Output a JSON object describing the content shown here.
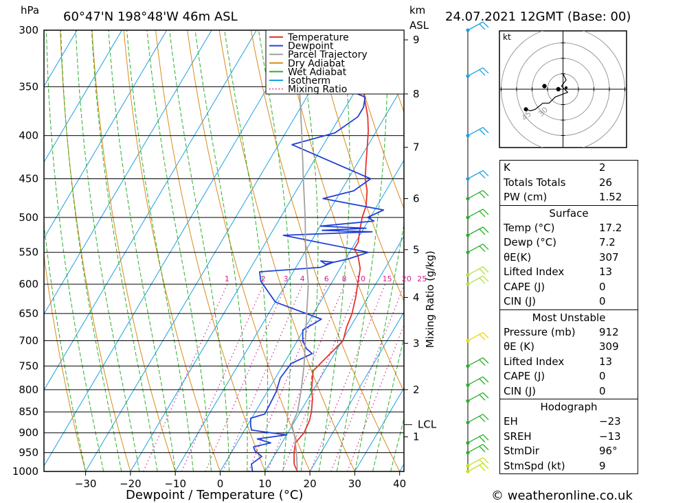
{
  "header": {
    "location": "60°47'N  198°48'W  46m  ASL",
    "datetime": "24.07.2021  12GMT  (Base: 00)",
    "left_unit": "hPa",
    "right_unit_top": "km",
    "right_unit_bottom": "ASL"
  },
  "footer": {
    "copyright": "© weatheronline.co.uk"
  },
  "legend": {
    "items": [
      {
        "label": "Temperature",
        "color": "#e8302a",
        "style": "solid"
      },
      {
        "label": "Dewpoint",
        "color": "#2040d8",
        "style": "solid"
      },
      {
        "label": "Parcel Trajectory",
        "color": "#a0a0a0",
        "style": "solid"
      },
      {
        "label": "Dry Adiabat",
        "color": "#d88a1a",
        "style": "solid"
      },
      {
        "label": "Wet Adiabat",
        "color": "#28b028",
        "style": "solid"
      },
      {
        "label": "Isotherm",
        "color": "#1aa0e0",
        "style": "solid"
      },
      {
        "label": "Mixing Ratio",
        "color": "#d02090",
        "style": "dotted"
      }
    ]
  },
  "chart_data": {
    "type": "line",
    "xlabel": "Dewpoint / Temperature (°C)",
    "ylabel_left": "hPa",
    "ylabel_right": "Mixing Ratio (g/kg)",
    "x_ticks": [
      -30,
      -20,
      -10,
      0,
      10,
      20,
      30,
      40
    ],
    "xlim": [
      -40,
      40
    ],
    "ylim": [
      1000,
      300
    ],
    "pressure_ticks": [
      300,
      350,
      400,
      450,
      500,
      550,
      600,
      650,
      700,
      750,
      800,
      850,
      900,
      950,
      1000
    ],
    "km_ticks": [
      {
        "label": "1",
        "p": 910
      },
      {
        "label": "2",
        "p": 800
      },
      {
        "label": "3",
        "p": 705
      },
      {
        "label": "4",
        "p": 622
      },
      {
        "label": "5",
        "p": 546
      },
      {
        "label": "6",
        "p": 475
      },
      {
        "label": "7",
        "p": 413
      },
      {
        "label": "8",
        "p": 357
      },
      {
        "label": "9",
        "p": 308
      }
    ],
    "lcl": {
      "label": "LCL",
      "p": 880
    },
    "mixing_ratio_labels": [
      "1",
      "2",
      "3",
      "4",
      "6",
      "8",
      "10",
      "15",
      "20",
      "25"
    ],
    "mixing_ratio_values": [
      1,
      2,
      3,
      4,
      6,
      8,
      10,
      15,
      20,
      25
    ],
    "series": [
      {
        "name": "Temperature",
        "points": [
          [
            17.2,
            1000
          ],
          [
            15.5,
            980
          ],
          [
            14,
            950
          ],
          [
            13,
            925
          ],
          [
            13.6,
            900
          ],
          [
            13.2,
            870
          ],
          [
            12.5,
            850
          ],
          [
            11,
            820
          ],
          [
            9.6,
            800
          ],
          [
            7.5,
            760
          ],
          [
            8.8,
            730
          ],
          [
            10.2,
            700
          ],
          [
            9.2,
            675
          ],
          [
            8.6,
            650
          ],
          [
            7.2,
            620
          ],
          [
            6,
            600
          ],
          [
            4.5,
            575
          ],
          [
            2.3,
            555
          ],
          [
            0.6,
            545
          ],
          [
            0.6,
            535
          ],
          [
            -0.5,
            520
          ],
          [
            -1.8,
            500
          ],
          [
            -2.4,
            485
          ],
          [
            -4.2,
            465
          ],
          [
            -6.2,
            450
          ],
          [
            -8.2,
            430
          ],
          [
            -10.2,
            410
          ],
          [
            -11.8,
            395
          ],
          [
            -13.8,
            380
          ],
          [
            -16.3,
            365
          ],
          [
            -18.8,
            350
          ],
          [
            -21.2,
            336
          ],
          [
            -23.3,
            325
          ],
          [
            -25.2,
            315
          ],
          [
            -27.3,
            303
          ]
        ]
      },
      {
        "name": "Dewpoint",
        "points": [
          [
            7.2,
            1000
          ],
          [
            6,
            980
          ],
          [
            7.3,
            960
          ],
          [
            5,
            945
          ],
          [
            4.2,
            935
          ],
          [
            7.5,
            925
          ],
          [
            4,
            915
          ],
          [
            10,
            905
          ],
          [
            4,
            897
          ],
          [
            1.5,
            893
          ],
          [
            0.6,
            880
          ],
          [
            -0.2,
            865
          ],
          [
            2.4,
            855
          ],
          [
            2.2,
            830
          ],
          [
            2,
            805
          ],
          [
            1.1,
            775
          ],
          [
            1.6,
            745
          ],
          [
            5,
            725
          ],
          [
            3,
            715
          ],
          [
            1.2,
            700
          ],
          [
            -0.2,
            680
          ],
          [
            2.5,
            660
          ],
          [
            -10,
            630
          ],
          [
            -16,
            595
          ],
          [
            -17.5,
            580
          ],
          [
            -4.5,
            573
          ],
          [
            -2.3,
            565
          ],
          [
            -5.3,
            563
          ],
          [
            -3.8,
            568
          ],
          [
            0.6,
            560
          ],
          [
            4.2,
            550
          ],
          [
            -17,
            525
          ],
          [
            2.3,
            520
          ],
          [
            -9,
            518
          ],
          [
            0.5,
            515
          ],
          [
            -10,
            512
          ],
          [
            1.3,
            505
          ],
          [
            -0.6,
            500
          ],
          [
            2,
            490
          ],
          [
            -13,
            475
          ],
          [
            -7.2,
            465
          ],
          [
            -5,
            450
          ],
          [
            -27,
            410
          ],
          [
            -19,
            397
          ],
          [
            -16,
            380
          ],
          [
            -16,
            370
          ],
          [
            -17,
            360
          ],
          [
            -24,
            350
          ],
          [
            -24,
            340
          ],
          [
            -24.5,
            331
          ],
          [
            -23,
            323
          ],
          [
            -21,
            318
          ],
          [
            -19,
            314
          ],
          [
            -18.6,
            306
          ],
          [
            -20,
            303
          ],
          [
            -22.5,
            300
          ]
        ]
      },
      {
        "name": "Parcel Trajectory",
        "points": [
          [
            17.2,
            1000
          ],
          [
            14.8,
            955
          ],
          [
            12.2,
            912
          ],
          [
            9.8,
            880
          ],
          [
            9.4,
            850
          ],
          [
            7.3,
            800
          ],
          [
            4.8,
            750
          ],
          [
            1.8,
            700
          ],
          [
            -1.5,
            650
          ],
          [
            -5,
            600
          ],
          [
            -9.8,
            550
          ],
          [
            -14.5,
            500
          ],
          [
            -20,
            450
          ],
          [
            -26,
            400
          ],
          [
            -33,
            350
          ],
          [
            -39,
            310
          ]
        ]
      }
    ],
    "winds_profile": [
      {
        "p": 1000,
        "color": "#c8e020"
      },
      {
        "p": 985,
        "color": "#c8e020"
      },
      {
        "p": 950,
        "color": "#28b028"
      },
      {
        "p": 925,
        "color": "#28b028"
      },
      {
        "p": 875,
        "color": "#28b028"
      },
      {
        "p": 825,
        "color": "#28b028"
      },
      {
        "p": 790,
        "color": "#28b028"
      },
      {
        "p": 750,
        "color": "#28b028"
      },
      {
        "p": 700,
        "color": "#f0d800"
      },
      {
        "p": 600,
        "color": "#b0e040"
      },
      {
        "p": 585,
        "color": "#b0e040"
      },
      {
        "p": 550,
        "color": "#28b028"
      },
      {
        "p": 525,
        "color": "#28b028"
      },
      {
        "p": 500,
        "color": "#28b028"
      },
      {
        "p": 475,
        "color": "#28b028"
      },
      {
        "p": 450,
        "color": "#1aa0e0"
      },
      {
        "p": 400,
        "color": "#1aa0e0"
      },
      {
        "p": 340,
        "color": "#1aa0e0"
      },
      {
        "p": 300,
        "color": "#1aa0e0"
      }
    ],
    "hodograph": {
      "unit_label": "kt",
      "ring_labels": [
        "45",
        "30"
      ],
      "path": [
        [
          0,
          -10
        ],
        [
          2,
          -6
        ],
        [
          -1,
          -2
        ],
        [
          3,
          2
        ],
        [
          -5,
          5
        ],
        [
          -9,
          9
        ],
        [
          -13,
          9
        ],
        [
          -18,
          13
        ],
        [
          -21,
          14
        ],
        [
          -24,
          13
        ]
      ],
      "storm_motion": [
        [
          -3,
          0
        ],
        [
          -12,
          -2
        ]
      ]
    }
  },
  "indices": {
    "top": [
      {
        "key": "K",
        "value": "2"
      },
      {
        "key": "Totals Totals",
        "value": "26"
      },
      {
        "key": "PW (cm)",
        "value": "1.52"
      }
    ],
    "surface": {
      "title": "Surface",
      "rows": [
        {
          "key": "Temp (°C)",
          "value": "17.2"
        },
        {
          "key": "Dewp (°C)",
          "value": "7.2"
        },
        {
          "key": "θE(K)",
          "value": "307"
        },
        {
          "key": "Lifted Index",
          "value": "13"
        },
        {
          "key": "CAPE (J)",
          "value": "0"
        },
        {
          "key": "CIN (J)",
          "value": "0"
        }
      ]
    },
    "most_unstable": {
      "title": "Most Unstable",
      "rows": [
        {
          "key": "Pressure (mb)",
          "value": "912"
        },
        {
          "key": "θE (K)",
          "value": "309"
        },
        {
          "key": "Lifted Index",
          "value": "13"
        },
        {
          "key": "CAPE (J)",
          "value": "0"
        },
        {
          "key": "CIN (J)",
          "value": "0"
        }
      ]
    },
    "hodograph": {
      "title": "Hodograph",
      "rows": [
        {
          "key": "EH",
          "value": "-23"
        },
        {
          "key": "SREH",
          "value": "-13"
        },
        {
          "key": "StmDir",
          "value": "96°"
        },
        {
          "key": "StmSpd (kt)",
          "value": "9"
        }
      ]
    }
  }
}
